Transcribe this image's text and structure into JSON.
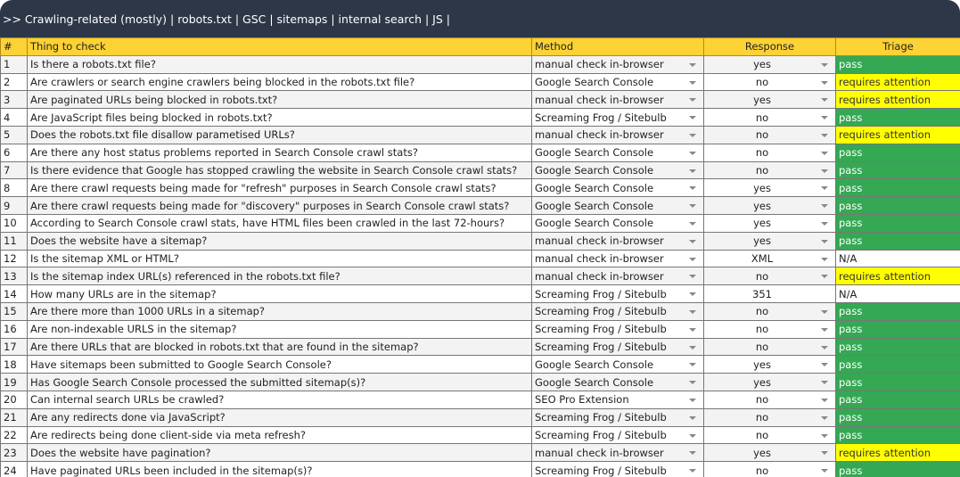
{
  "banner": ">> Crawling-related (mostly) | robots.txt | GSC | sitemaps | internal search | JS |",
  "headers": {
    "num": "#",
    "thing": "Thing to check",
    "method": "Method",
    "response": "Response",
    "triage": "Triage"
  },
  "colors": {
    "header": "#fdd235",
    "banner": "#2d3748",
    "pass": "#34a853",
    "attention": "#ffff00"
  },
  "rows": [
    {
      "num": "1",
      "thing": "Is there a robots.txt file?",
      "method": "manual check in-browser",
      "response": "yes",
      "triage": "pass"
    },
    {
      "num": "2",
      "thing": "Are crawlers or search engine crawlers being blocked in the robots.txt file?",
      "method": "Google Search Console",
      "response": "no",
      "triage": "requires attention"
    },
    {
      "num": "3",
      "thing": "Are paginated URLs being blocked in robots.txt?",
      "method": "manual check in-browser",
      "response": "yes",
      "triage": "requires attention"
    },
    {
      "num": "4",
      "thing": "Are JavaScript files being blocked in robots.txt?",
      "method": "Screaming Frog / Sitebulb",
      "response": "no",
      "triage": "pass"
    },
    {
      "num": "5",
      "thing": "Does the robots.txt file disallow parametised URLs?",
      "method": "manual check in-browser",
      "response": "no",
      "triage": "requires attention"
    },
    {
      "num": "6",
      "thing": "Are there any host status problems reported in Search Console crawl stats?",
      "method": "Google Search Console",
      "response": "no",
      "triage": "pass"
    },
    {
      "num": "7",
      "thing": "Is there evidence that Google has stopped crawling the website in Search Console crawl stats?",
      "method": "Google Search Console",
      "response": "no",
      "triage": "pass"
    },
    {
      "num": "8",
      "thing": "Are there crawl requests being made for \"refresh\" purposes in Search Console crawl stats?",
      "method": "Google Search Console",
      "response": "yes",
      "triage": "pass"
    },
    {
      "num": "9",
      "thing": "Are there crawl requests being made for \"discovery\" purposes in Search Console crawl stats?",
      "method": "Google Search Console",
      "response": "yes",
      "triage": "pass"
    },
    {
      "num": "10",
      "thing": "According to Search Console crawl stats, have HTML files been crawled in the last 72-hours?",
      "method": "Google Search Console",
      "response": "yes",
      "triage": "pass"
    },
    {
      "num": "11",
      "thing": "Does the website have a sitemap?",
      "method": "manual check in-browser",
      "response": "yes",
      "triage": "pass"
    },
    {
      "num": "12",
      "thing": "Is the sitemap XML or HTML?",
      "method": "manual check in-browser",
      "response": "XML",
      "triage": "N/A"
    },
    {
      "num": "13",
      "thing": "Is the sitemap index URL(s) referenced in the robots.txt file?",
      "method": "manual check in-browser",
      "response": "no",
      "triage": "requires attention"
    },
    {
      "num": "14",
      "thing": "How many URLs are in the sitemap?",
      "method": "Screaming Frog / Sitebulb",
      "response": "351",
      "triage": "N/A"
    },
    {
      "num": "15",
      "thing": "Are there more than 1000 URLs in a sitemap?",
      "method": "Screaming Frog / Sitebulb",
      "response": "no",
      "triage": "pass"
    },
    {
      "num": "16",
      "thing": "Are non-indexable URLS in the sitemap?",
      "method": "Screaming Frog / Sitebulb",
      "response": "no",
      "triage": "pass"
    },
    {
      "num": "17",
      "thing": "Are there URLs that are blocked in robots.txt that are found in the sitemap?",
      "method": "Screaming Frog / Sitebulb",
      "response": "no",
      "triage": "pass"
    },
    {
      "num": "18",
      "thing": "Have sitemaps been submitted to Google Search Console?",
      "method": "Google Search Console",
      "response": "yes",
      "triage": "pass"
    },
    {
      "num": "19",
      "thing": "Has Google Search Console processed the submitted sitemap(s)?",
      "method": "Google Search Console",
      "response": "yes",
      "triage": "pass"
    },
    {
      "num": "20",
      "thing": "Can internal search URLs be crawled?",
      "method": "SEO Pro Extension",
      "response": "no",
      "triage": "pass"
    },
    {
      "num": "21",
      "thing": "Are any redirects done via JavaScript?",
      "method": "Screaming Frog / Sitebulb",
      "response": "no",
      "triage": "pass"
    },
    {
      "num": "22",
      "thing": "Are redirects being done client-side via meta refresh?",
      "method": "Screaming Frog / Sitebulb",
      "response": "no",
      "triage": "pass"
    },
    {
      "num": "23",
      "thing": "Does the website have pagination?",
      "method": "manual check in-browser",
      "response": "yes",
      "triage": "requires attention"
    },
    {
      "num": "24",
      "thing": "Have paginated URLs been included in the sitemap(s)?",
      "method": "Screaming Frog / Sitebulb",
      "response": "no",
      "triage": "pass"
    }
  ]
}
